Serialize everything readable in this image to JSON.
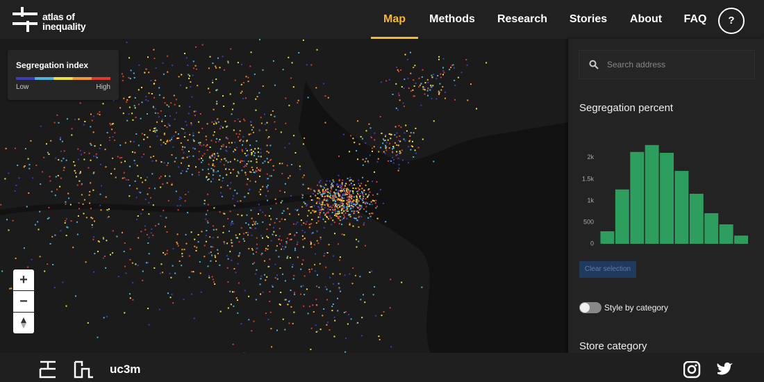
{
  "header": {
    "logo_lines": [
      "atlas of",
      "inequality"
    ]
  },
  "nav": {
    "items": [
      "Map",
      "Methods",
      "Research",
      "Stories",
      "About",
      "FAQ"
    ],
    "active": 0,
    "help": "?"
  },
  "legend": {
    "title": "Segregation index",
    "low": "Low",
    "high": "High",
    "colors": [
      "#3d3db8",
      "#4fb3e0",
      "#f2e13b",
      "#f59a2e",
      "#e03b2e"
    ]
  },
  "sidebar": {
    "search_placeholder": "Search address",
    "clear_button": "Clear selection",
    "toggle_label": "Style by category",
    "store_title": "Store category"
  },
  "chart_data": {
    "type": "bar",
    "title": "Segregation percent",
    "categories": [
      null,
      null,
      null,
      null,
      null,
      null,
      null,
      null,
      null,
      null
    ],
    "values": [
      290,
      1260,
      2130,
      2290,
      2110,
      1690,
      1160,
      710,
      450,
      190
    ],
    "color": "#2e9e5e",
    "ylim": [
      0,
      2400
    ],
    "yticks": [
      0,
      500,
      {
        "value": 1000,
        "label": "1k"
      },
      {
        "value": 1500,
        "label": "1.5k"
      },
      {
        "value": 2000,
        "label": "2k"
      }
    ],
    "grid": false
  },
  "footer": {
    "brand": "uc3m"
  }
}
